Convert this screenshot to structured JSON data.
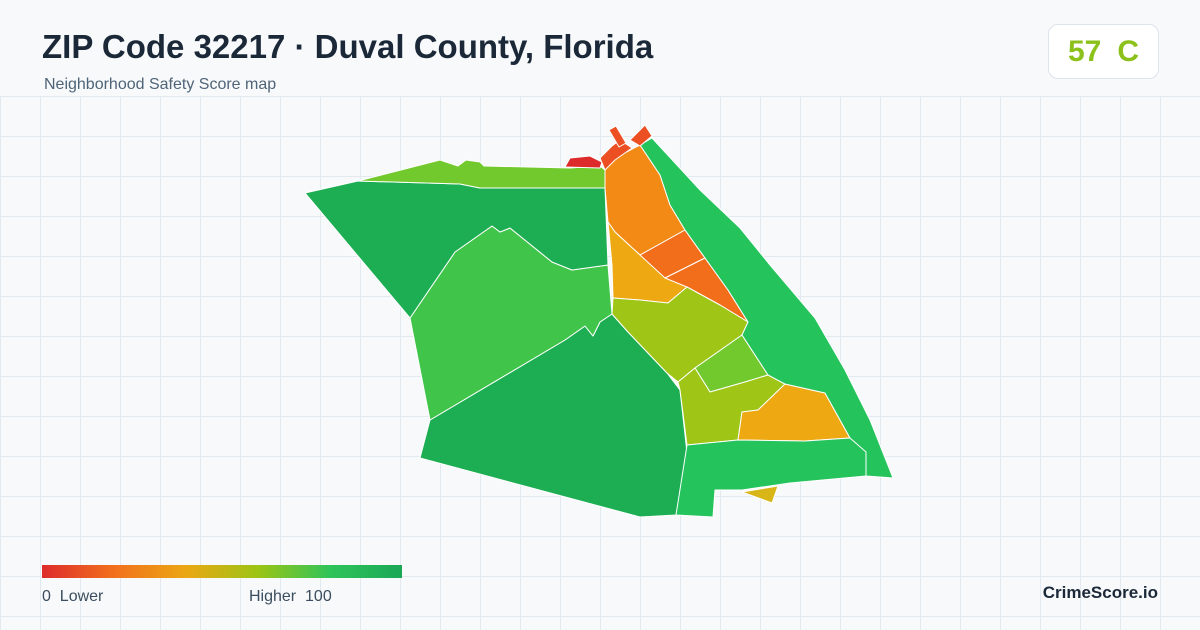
{
  "header": {
    "title": "ZIP Code 32217 · Duval County, Florida",
    "subtitle": "Neighborhood Safety Score map"
  },
  "score": {
    "value": "57",
    "grade": "C",
    "color": "#8cc11c"
  },
  "legend": {
    "min_value": "0",
    "min_label": "Lower",
    "max_label": "Higher",
    "max_value": "100",
    "colors": [
      "#dd2b2b",
      "#f2701d",
      "#eba714",
      "#9cc414",
      "#2fc45a",
      "#1aa856"
    ]
  },
  "brand": "CrimeScore.io",
  "palette": {
    "dark_green": "#1dae53",
    "green": "#40c44a",
    "bright_green": "#24c35c",
    "yellow_green": "#9fc516",
    "light_green": "#72c92d",
    "orange": "#f28a15",
    "dark_orange": "#f26e1b",
    "amber": "#eea812",
    "red": "#dd2b2b",
    "red_orange": "#ec4f22",
    "mustard": "#d8b617"
  }
}
